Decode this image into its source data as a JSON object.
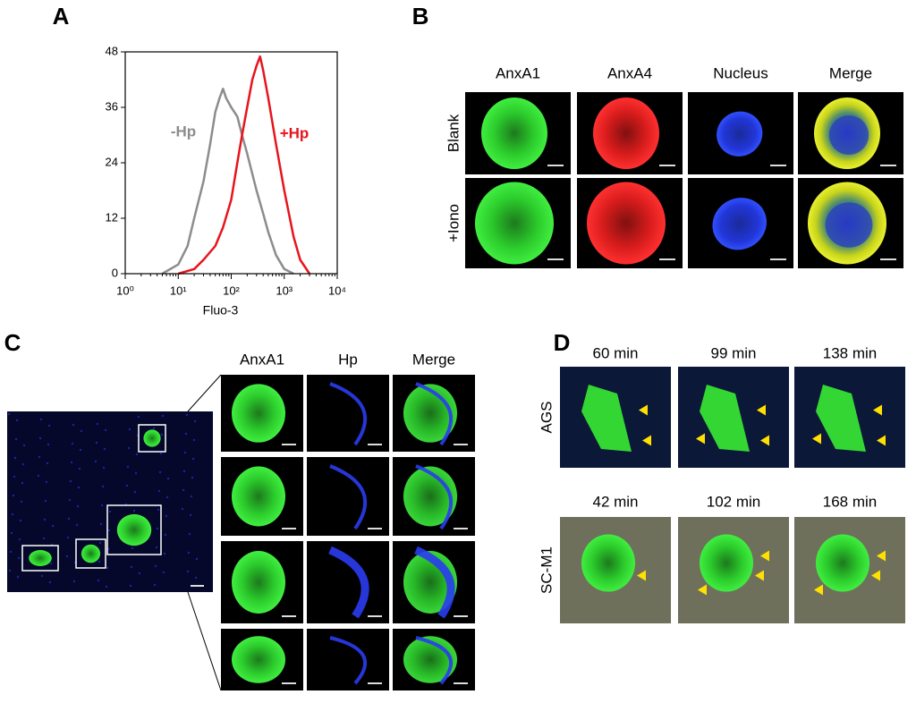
{
  "chart_data": {
    "type": "line",
    "xlabel": "Fluo-3",
    "xscale": "log",
    "xlim": [
      1,
      10000
    ],
    "xticks": [
      {
        "value": 1,
        "label": "10⁰"
      },
      {
        "value": 10,
        "label": "10¹"
      },
      {
        "value": 100,
        "label": "10²"
      },
      {
        "value": 1000,
        "label": "10³"
      },
      {
        "value": 10000,
        "label": "10⁴"
      }
    ],
    "ylim": [
      0,
      48
    ],
    "yticks": [
      0,
      12,
      24,
      36,
      48
    ],
    "series": [
      {
        "name": "-Hp",
        "color": "#8c8c8c",
        "x": [
          5,
          10,
          15,
          20,
          30,
          40,
          50,
          60,
          70,
          80,
          100,
          130,
          160,
          200,
          300,
          400,
          500,
          700,
          1000,
          1500
        ],
        "values": [
          0,
          2,
          6,
          12,
          20,
          28,
          35,
          38,
          40,
          38,
          36,
          34,
          30,
          26,
          18,
          13,
          9,
          4,
          1,
          0
        ]
      },
      {
        "name": "+Hp",
        "color": "#e8141c",
        "x": [
          10,
          20,
          30,
          50,
          70,
          100,
          130,
          160,
          200,
          250,
          300,
          350,
          400,
          500,
          700,
          1000,
          1500,
          2000,
          3000
        ],
        "values": [
          0,
          1,
          3,
          6,
          10,
          16,
          24,
          30,
          36,
          42,
          45,
          47,
          44,
          38,
          28,
          18,
          8,
          3,
          0
        ]
      }
    ]
  },
  "panel_labels": [
    "A",
    "B",
    "C",
    "D"
  ],
  "panel_b": {
    "columns": [
      "AnxA1",
      "AnxA4",
      "Nucleus",
      "Merge"
    ],
    "rows": [
      "Blank",
      "+Iono"
    ]
  },
  "panel_c": {
    "columns": [
      "AnxA1",
      "Hp",
      "Merge"
    ]
  },
  "panel_d": {
    "rows": [
      {
        "label": "AGS",
        "times": [
          "60 min",
          "99 min",
          "138 min"
        ]
      },
      {
        "label": "SC-M1",
        "times": [
          "42 min",
          "102 min",
          "168 min"
        ]
      }
    ]
  }
}
